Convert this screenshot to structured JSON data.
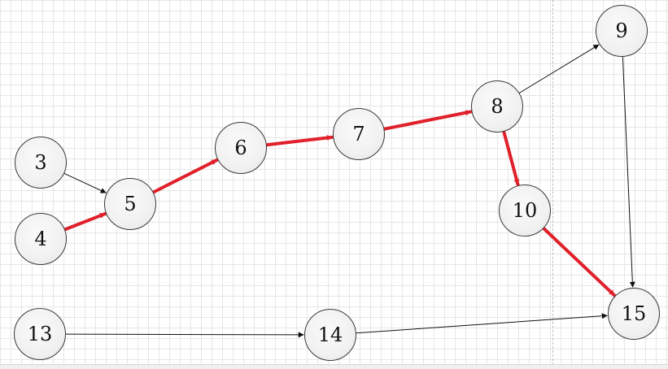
{
  "diagram": {
    "nodes": [
      {
        "id": "3",
        "label": "3"
      },
      {
        "id": "4",
        "label": "4"
      },
      {
        "id": "5",
        "label": "5"
      },
      {
        "id": "6",
        "label": "6"
      },
      {
        "id": "7",
        "label": "7"
      },
      {
        "id": "8",
        "label": "8"
      },
      {
        "id": "9",
        "label": "9"
      },
      {
        "id": "10",
        "label": "10"
      },
      {
        "id": "13",
        "label": "13"
      },
      {
        "id": "14",
        "label": "14"
      },
      {
        "id": "15",
        "label": "15"
      }
    ],
    "edges": [
      {
        "from": "3",
        "to": "5",
        "highlighted": false
      },
      {
        "from": "4",
        "to": "5",
        "highlighted": true
      },
      {
        "from": "5",
        "to": "6",
        "highlighted": true
      },
      {
        "from": "6",
        "to": "7",
        "highlighted": true
      },
      {
        "from": "7",
        "to": "8",
        "highlighted": true
      },
      {
        "from": "8",
        "to": "9",
        "highlighted": false
      },
      {
        "from": "8",
        "to": "10",
        "highlighted": true
      },
      {
        "from": "9",
        "to": "15",
        "highlighted": false
      },
      {
        "from": "10",
        "to": "15",
        "highlighted": true
      },
      {
        "from": "13",
        "to": "14",
        "highlighted": false
      },
      {
        "from": "14",
        "to": "15",
        "highlighted": false
      }
    ],
    "colors": {
      "highlight": "#e0202a",
      "normal": "#111111"
    }
  }
}
